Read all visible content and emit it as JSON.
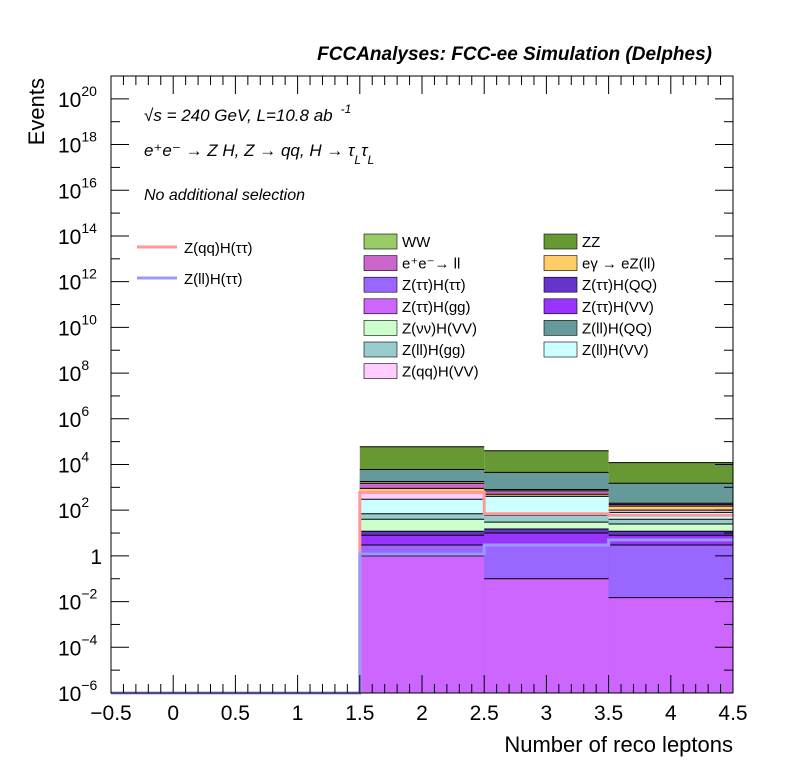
{
  "chart_data": {
    "type": "stacked-histogram",
    "title": "FCCAnalyses: FCC-ee Simulation (Delphes)",
    "xlabel": "Number of reco leptons",
    "ylabel": "Events",
    "xlim": [
      -0.5,
      4.5
    ],
    "ylim": [
      1e-06,
      1e+21
    ],
    "yscale": "log",
    "x_ticks": [
      "−0.5",
      "0",
      "0.5",
      "1",
      "1.5",
      "2",
      "2.5",
      "3",
      "3.5",
      "4",
      "4.5"
    ],
    "y_ticks": [
      {
        "base": "10",
        "exp": "−6",
        "value": 1e-06
      },
      {
        "base": "10",
        "exp": "−4",
        "value": 0.0001
      },
      {
        "base": "10",
        "exp": "−2",
        "value": 0.01
      },
      {
        "base": "1",
        "exp": "",
        "value": 1
      },
      {
        "base": "10",
        "exp": "2",
        "value": 100.0
      },
      {
        "base": "10",
        "exp": "4",
        "value": 10000.0
      },
      {
        "base": "10",
        "exp": "6",
        "value": 1000000.0
      },
      {
        "base": "10",
        "exp": "8",
        "value": 100000000.0
      },
      {
        "base": "10",
        "exp": "10",
        "value": 10000000000.0
      },
      {
        "base": "10",
        "exp": "12",
        "value": 1000000000000.0
      },
      {
        "base": "10",
        "exp": "14",
        "value": 100000000000000.0
      },
      {
        "base": "10",
        "exp": "16",
        "value": 1e+16
      },
      {
        "base": "10",
        "exp": "18",
        "value": 1e+18
      },
      {
        "base": "10",
        "exp": "20",
        "value": 1e+20
      }
    ],
    "bin_edges": [
      1.5,
      2.5,
      3.5,
      4.5
    ],
    "stack_cumulative": [
      {
        "name": "Z(ττ)H(gg)",
        "color": "#cc66ff",
        "values": [
          1.0,
          0.1,
          0.015
        ]
      },
      {
        "name": "Z(ττ)H(ττ)",
        "color": "#9966ff",
        "values": [
          3,
          3,
          3
        ]
      },
      {
        "name": "Z(ττ)H(VV)",
        "color": "#9933ff",
        "values": [
          8,
          10,
          8
        ]
      },
      {
        "name": "Z(ττ)H(QQ)",
        "color": "#6633cc",
        "values": [
          12,
          15,
          12
        ]
      },
      {
        "name": "Z(νν)H(VV)",
        "color": "#ccffcc",
        "values": [
          40,
          30,
          25
        ]
      },
      {
        "name": "Z(ll)H(gg)",
        "color": "#99cccc",
        "values": [
          70,
          60,
          40
        ]
      },
      {
        "name": "Z(ll)H(VV)",
        "color": "#ccffff",
        "values": [
          300,
          400,
          80
        ]
      },
      {
        "name": "Z(qq)H(VV)",
        "color": "#ffccff",
        "values": [
          600,
          400,
          100
        ]
      },
      {
        "name": "eγ → eZ(ll)",
        "color": "#ffcc66",
        "values": [
          900,
          500,
          150
        ]
      },
      {
        "name": "e⁺e⁻→ ll",
        "color": "#cc66cc",
        "values": [
          1500,
          700,
          180
        ]
      },
      {
        "name": "WW",
        "color": "#99cc66",
        "values": [
          1800,
          800,
          200
        ]
      },
      {
        "name": "Z(ll)H(QQ)",
        "color": "#669999",
        "values": [
          6000,
          4500,
          1500
        ]
      },
      {
        "name": "ZZ",
        "color": "#669933",
        "values": [
          60000,
          40000,
          12000
        ]
      }
    ],
    "signal_lines": [
      {
        "name": "Z(qq)H(ττ)",
        "color": "#ff9999",
        "values": [
          600,
          70,
          60
        ]
      },
      {
        "name": "Z(ll)H(ττ)",
        "color": "#9999ff",
        "values": [
          1.2,
          3,
          5
        ]
      }
    ],
    "annotations": {
      "line1_sqrt": "√s",
      "line1_rest": " = 240 GeV, L=10.8 ab",
      "line1_sup": "-1",
      "line2": "e⁺e⁻ → Z H, Z  → qq, H  → τ",
      "line2_sub": "L",
      "line3": "No additional selection"
    },
    "legend_left": [
      {
        "label": "Z(qq)H(ττ)",
        "color": "#ff9999"
      },
      {
        "label": "Z(ll)H(ττ)",
        "color": "#9999ff"
      }
    ],
    "legend_right_col1": [
      {
        "label": "WW",
        "color": "#99cc66"
      },
      {
        "label": "e⁺e⁻→ ll",
        "color": "#cc66cc"
      },
      {
        "label": "Z(ττ)H(ττ)",
        "color": "#9966ff"
      },
      {
        "label": "Z(ττ)H(gg)",
        "color": "#cc66ff"
      },
      {
        "label": "Z(νν)H(VV)",
        "color": "#ccffcc"
      },
      {
        "label": "Z(ll)H(gg)",
        "color": "#99cccc"
      },
      {
        "label": "Z(qq)H(VV)",
        "color": "#ffccff"
      }
    ],
    "legend_right_col2": [
      {
        "label": "ZZ",
        "color": "#669933"
      },
      {
        "label": "eγ → eZ(ll)",
        "color": "#ffcc66"
      },
      {
        "label": "Z(ττ)H(QQ)",
        "color": "#6633cc"
      },
      {
        "label": "Z(ττ)H(VV)",
        "color": "#9933ff"
      },
      {
        "label": "Z(ll)H(QQ)",
        "color": "#669999"
      },
      {
        "label": "Z(ll)H(VV)",
        "color": "#ccffff"
      }
    ]
  }
}
